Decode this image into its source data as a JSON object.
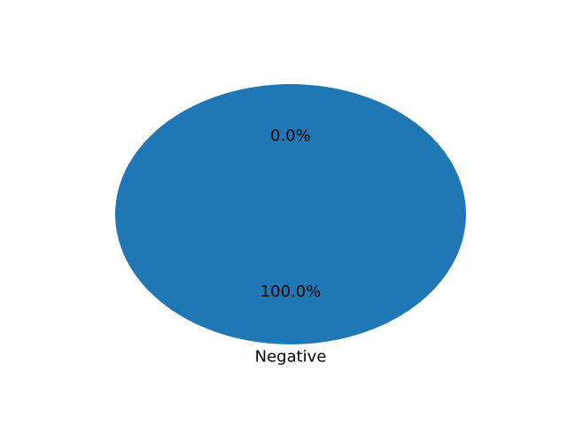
{
  "chart_data": {
    "type": "pie",
    "title": "",
    "labels": [
      "",
      "Negative"
    ],
    "values": [
      0.0,
      100.0
    ],
    "autopct_labels": [
      "0.0%",
      "100.0%"
    ],
    "colors": [
      "#ff7f0e",
      "#1f77b4"
    ]
  }
}
